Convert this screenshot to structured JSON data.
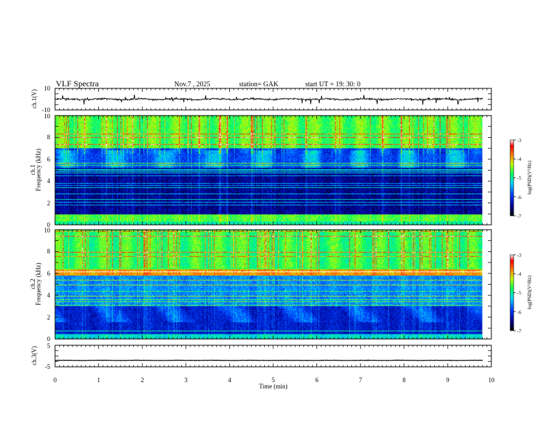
{
  "header": {
    "title": "VLF  Spectra",
    "date": "Nov.7  , 2025",
    "station": "station= GAK",
    "start_ut": "start  UT  =    19: 30: 0"
  },
  "chart_data": [
    {
      "type": "line",
      "name": "ch1-waveform",
      "ylabel": "ch.1(V)",
      "ylim": [
        -10,
        10
      ],
      "y_ticks": [
        "10",
        "-10"
      ],
      "xlim": [
        0,
        10
      ],
      "xlabel": "",
      "trace_offset_v": 0.0,
      "trace_std_v": 1.3,
      "trace_spikes_v": 4.5,
      "grid": false
    },
    {
      "type": "heatmap",
      "name": "ch1-spectrogram",
      "ylabel": "ch.1\nFrequency  (kHz)",
      "ylim": [
        0,
        10
      ],
      "y_ticks": [
        "0",
        "2",
        "4",
        "6",
        "8",
        "10"
      ],
      "xlim": [
        0,
        10
      ],
      "data_end_min": 9.8,
      "bands_khz": [
        {
          "from": 0.0,
          "to": 0.3,
          "level": -5.0
        },
        {
          "from": 0.3,
          "to": 0.9,
          "level": -4.6
        },
        {
          "from": 0.9,
          "to": 5.2,
          "level": -6.5
        },
        {
          "from": 5.2,
          "to": 7.0,
          "level": -5.9
        },
        {
          "from": 7.0,
          "to": 10.0,
          "level": -4.6
        }
      ],
      "colorbar": {
        "label": "log(PSD)(V²/Hz)",
        "min": -7,
        "max": -3,
        "ticks": [
          "-3",
          "-4",
          "-5",
          "-6",
          "-7"
        ]
      }
    },
    {
      "type": "heatmap",
      "name": "ch2-spectrogram",
      "ylabel": "ch.2\nFrequency  (kHz)",
      "ylim": [
        0,
        10
      ],
      "y_ticks": [
        "0",
        "2",
        "4",
        "6",
        "8",
        "10"
      ],
      "xlim": [
        0,
        10
      ],
      "data_end_min": 9.8,
      "bands_khz": [
        {
          "from": 0.0,
          "to": 0.4,
          "level": -5.2
        },
        {
          "from": 0.4,
          "to": 3.0,
          "level": -6.2
        },
        {
          "from": 3.0,
          "to": 5.8,
          "level": -5.6
        },
        {
          "from": 5.8,
          "to": 6.4,
          "level": -3.9
        },
        {
          "from": 6.4,
          "to": 10.0,
          "level": -4.7
        }
      ],
      "colorbar": {
        "label": "log(PSD)(V²/Hz)",
        "min": -7,
        "max": -3,
        "ticks": [
          "-3",
          "-4",
          "-5",
          "-6",
          "-7"
        ]
      }
    },
    {
      "type": "line",
      "name": "ch3-waveform",
      "ylabel": "ch.3(V)",
      "ylim": [
        -5,
        5
      ],
      "y_ticks": [
        "5",
        "-5"
      ],
      "xlim": [
        0,
        10
      ],
      "xlabel": "Time  (min)",
      "x_ticks": [
        "0",
        "1",
        "2",
        "3",
        "4",
        "5",
        "6",
        "7",
        "8",
        "9",
        "10"
      ],
      "trace_offset_v": -2.0,
      "trace_std_v": 0.15,
      "grid": false
    }
  ]
}
